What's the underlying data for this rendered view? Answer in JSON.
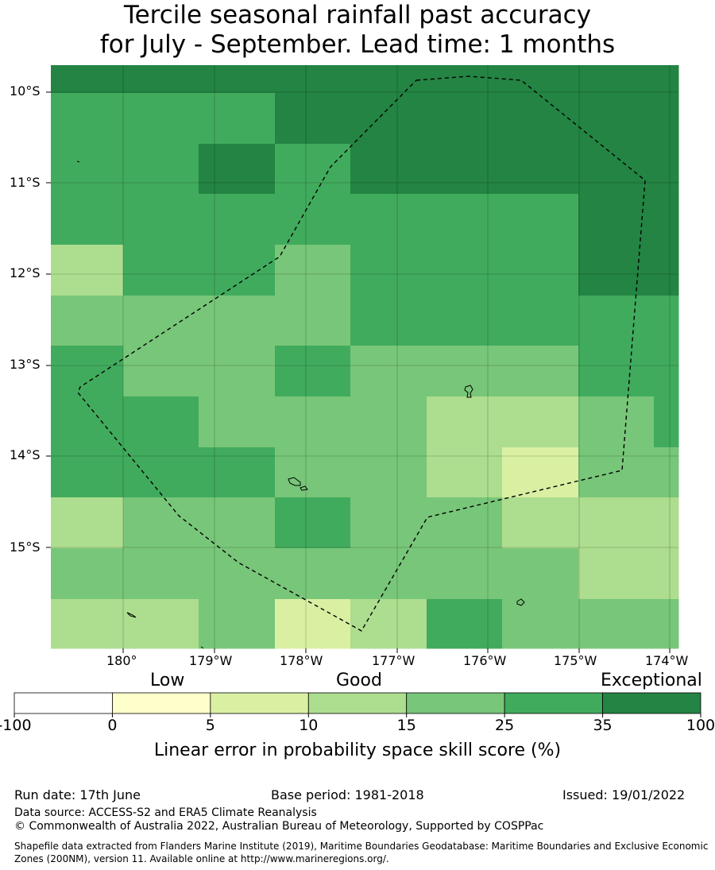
{
  "title": {
    "line1": "Tercile seasonal rainfall past accuracy",
    "line2": "for July - September. Lead time: 1 months"
  },
  "map": {
    "lat_labels": [
      "10°S",
      "11°S",
      "12°S",
      "13°S",
      "14°S",
      "15°S"
    ],
    "lon_labels": [
      "180°",
      "179°W",
      "178°W",
      "177°W",
      "176°W",
      "175°W",
      "174°W"
    ],
    "grid": true,
    "boundary": "dashed EEZ outline"
  },
  "chart_data": {
    "type": "heatmap",
    "title": "Tercile seasonal rainfall past accuracy for July - September. Lead time: 1 months",
    "xlabel": "",
    "ylabel": "",
    "x_tick_labels": [
      "180°",
      "179°W",
      "178°W",
      "177°W",
      "176°W",
      "175°W",
      "174°W"
    ],
    "y_tick_labels": [
      "10°S",
      "11°S",
      "12°S",
      "13°S",
      "14°S",
      "15°S"
    ],
    "skill_categories_by_row_north_to_south": [
      [
        35,
        35,
        35,
        35,
        35,
        35,
        35,
        35,
        35
      ],
      [
        25,
        25,
        25,
        35,
        35,
        35,
        35,
        35,
        35
      ],
      [
        25,
        25,
        35,
        25,
        35,
        35,
        35,
        35,
        35
      ],
      [
        25,
        25,
        25,
        25,
        25,
        25,
        25,
        35,
        35
      ],
      [
        10,
        25,
        25,
        15,
        25,
        25,
        25,
        35,
        35
      ],
      [
        15,
        15,
        15,
        15,
        25,
        25,
        25,
        25,
        25
      ],
      [
        25,
        15,
        15,
        25,
        15,
        15,
        15,
        25,
        25
      ],
      [
        25,
        25,
        15,
        15,
        15,
        10,
        10,
        15,
        25
      ],
      [
        25,
        25,
        25,
        15,
        15,
        10,
        5,
        15,
        15
      ],
      [
        10,
        15,
        15,
        25,
        15,
        15,
        10,
        10,
        10
      ],
      [
        15,
        15,
        15,
        15,
        15,
        15,
        15,
        10,
        10
      ],
      [
        10,
        10,
        15,
        5,
        10,
        25,
        15,
        15,
        15
      ]
    ],
    "colorbar": {
      "bounds": [
        "-100",
        "0",
        "5",
        "10",
        "15",
        "25",
        "35",
        "100"
      ],
      "colors": [
        "#ffffff",
        "#ffffcc",
        "#d9f0a3",
        "#addd8e",
        "#78c679",
        "#41ab5d",
        "#238443"
      ],
      "labels": [
        "Low",
        "Good",
        "Exceptional"
      ],
      "title": "Linear error in probability space skill score (%)"
    }
  },
  "footer": {
    "run_date": "Run date: 17th June",
    "base_period": "Base period: 1981-2018",
    "issued": "Issued: 19/01/2022",
    "data_source": "Data source: ACCESS-S2 and ERA5 Climate Reanalysis",
    "copyright": "© Commonwealth of Australia 2022, Australian Bureau of Meteorology, Supported by COSPPac",
    "shapefile": "Shapefile data extracted from Flanders Marine Institute (2019), Maritime Boundaries Geodatabase: Maritime Boundaries and Exclusive Economic Zones (200NM), version 11. Available online at http://www.marineregions.org/."
  }
}
